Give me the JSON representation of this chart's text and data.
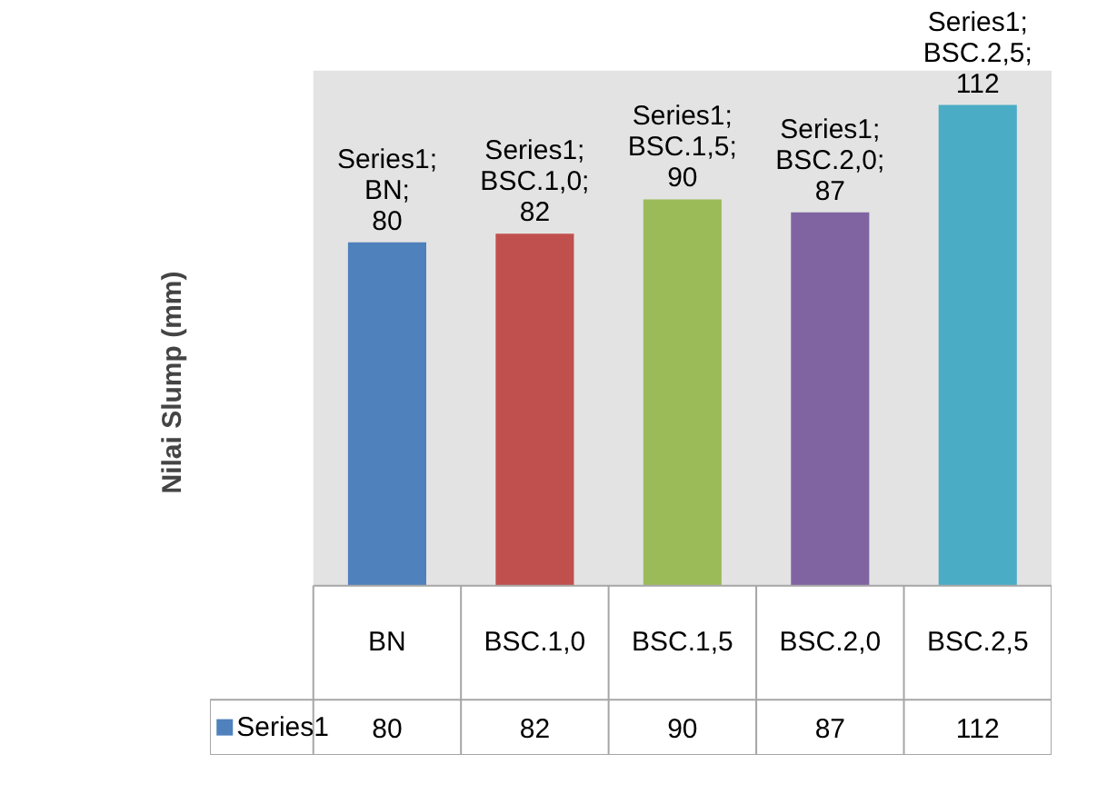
{
  "chart_data": {
    "type": "bar",
    "ylabel": "Nilai Slump (mm)",
    "categories": [
      "BN",
      "BSC.1,0",
      "BSC.1,5",
      "BSC.2,0",
      "BSC.2,5"
    ],
    "series": [
      {
        "name": "Series1",
        "color": "#4f81bd",
        "colors": [
          "#4f81bd",
          "#c0504d",
          "#9bbb59",
          "#8064a2",
          "#4bacc6"
        ],
        "values": [
          80,
          82,
          90,
          87,
          112
        ],
        "value_labels": [
          "Series1; BN; 80",
          "Series1; BSC.1,0; 82",
          "Series1; BSC.1,5; 90",
          "Series1; BSC.2,0; 87",
          "Series1; BSC.2,5; 112"
        ]
      }
    ],
    "ylim": [
      0,
      120
    ],
    "grid": false,
    "legend": "bottom",
    "annotations": [
      "80",
      "82",
      "90",
      "87",
      "112"
    ]
  }
}
